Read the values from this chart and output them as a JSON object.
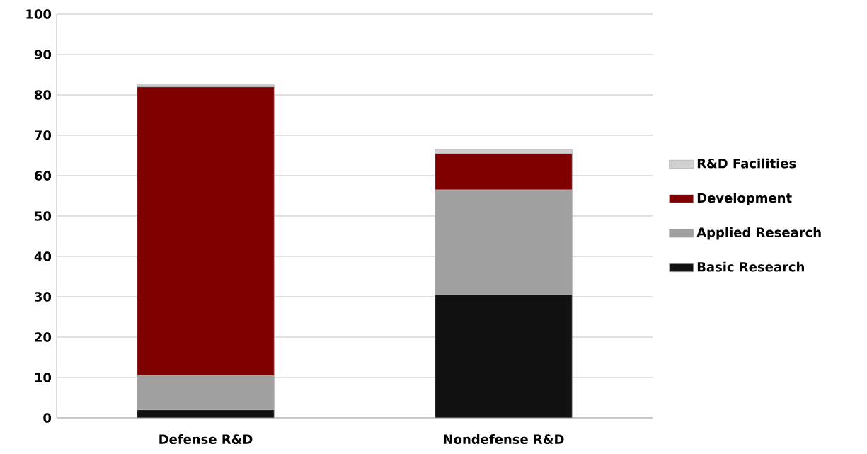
{
  "chart_data": {
    "type": "bar",
    "stacked": true,
    "categories": [
      "Defense R&D",
      "Nondefense R&D"
    ],
    "series": [
      {
        "name": "Basic Research",
        "color": "#111111",
        "values": [
          2,
          30.5
        ]
      },
      {
        "name": "Applied Research",
        "color": "#a0a0a0",
        "values": [
          8.5,
          26
        ]
      },
      {
        "name": "Development",
        "color": "#800000",
        "values": [
          71.5,
          9
        ]
      },
      {
        "name": "R&D Facilities",
        "color": "#d0d0d0",
        "values": [
          0.5,
          1
        ]
      }
    ],
    "ylim": [
      0,
      100
    ],
    "yticks": [
      0,
      10,
      20,
      30,
      40,
      50,
      60,
      70,
      80,
      90,
      100
    ],
    "grid": "y",
    "legend": "right"
  }
}
